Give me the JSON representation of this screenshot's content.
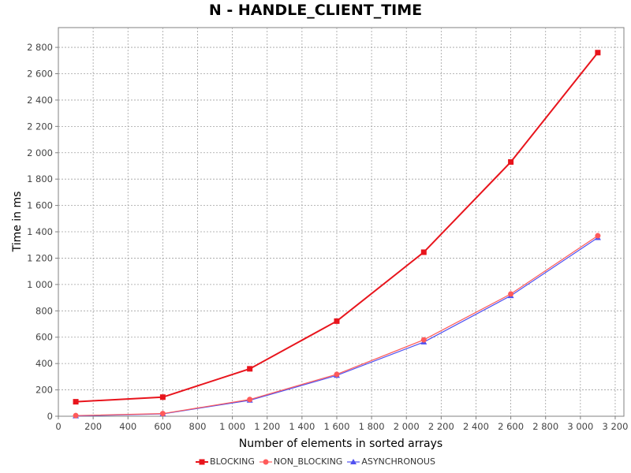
{
  "chart_data": {
    "type": "line",
    "title": "N - HANDLE_CLIENT_TIME",
    "xlabel": "Number of elements in sorted arrays",
    "ylabel": "Time in ms",
    "xlim": [
      0,
      3250
    ],
    "ylim": [
      0,
      2950
    ],
    "x_ticks": [
      0,
      200,
      400,
      600,
      800,
      1000,
      1200,
      1400,
      1600,
      1800,
      2000,
      2200,
      2400,
      2600,
      2800,
      3000,
      3200
    ],
    "x_tick_labels": [
      "0",
      "200",
      "400",
      "600",
      "800",
      "1 000",
      "1 200",
      "1 400",
      "1 600",
      "1 800",
      "2 000",
      "2 200",
      "2 400",
      "2 600",
      "2 800",
      "3 000",
      "3 200"
    ],
    "y_ticks": [
      0,
      200,
      400,
      600,
      800,
      1000,
      1200,
      1400,
      1600,
      1800,
      2000,
      2200,
      2400,
      2600,
      2800
    ],
    "y_tick_labels": [
      "0",
      "200",
      "400",
      "600",
      "800",
      "1 000",
      "1 200",
      "1 400",
      "1 600",
      "1 800",
      "2 000",
      "2 200",
      "2 400",
      "2 600",
      "2 800"
    ],
    "grid": true,
    "legend_position": "bottom",
    "x": [
      100,
      600,
      1100,
      1600,
      2100,
      2600,
      3100
    ],
    "series": [
      {
        "name": "BLOCKING",
        "color": "#e8141c",
        "marker": "square",
        "values": [
          110,
          145,
          360,
          722,
          1245,
          1930,
          2760
        ]
      },
      {
        "name": "NON_BLOCKING",
        "color": "#ff5a5a",
        "marker": "circle",
        "values": [
          5,
          20,
          127,
          318,
          580,
          928,
          1370
        ]
      },
      {
        "name": "ASYNCHRONOUS",
        "color": "#5050f0",
        "marker": "triangle",
        "values": [
          2,
          18,
          121,
          310,
          563,
          915,
          1355
        ]
      }
    ]
  }
}
